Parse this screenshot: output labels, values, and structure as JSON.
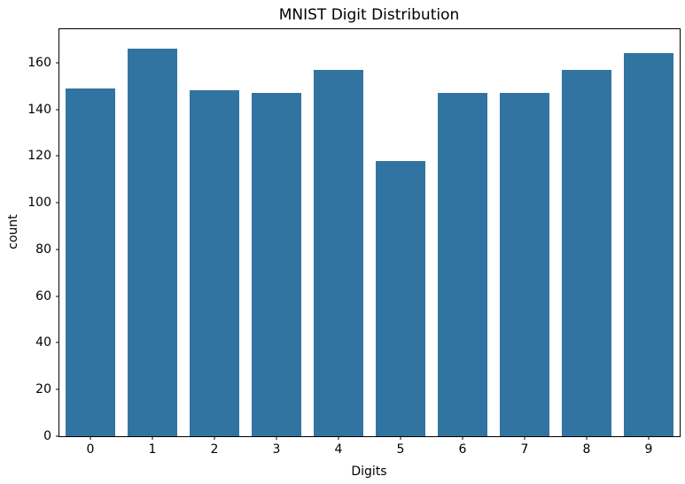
{
  "chart_data": {
    "type": "bar",
    "title": "MNIST Digit Distribution",
    "xlabel": "Digits",
    "ylabel": "count",
    "categories": [
      "0",
      "1",
      "2",
      "3",
      "4",
      "5",
      "6",
      "7",
      "8",
      "9"
    ],
    "values": [
      149,
      166,
      148,
      147,
      157,
      118,
      147,
      147,
      157,
      164
    ],
    "yticks": [
      0,
      20,
      40,
      60,
      80,
      100,
      120,
      140,
      160
    ],
    "ylim": [
      0,
      174.3
    ],
    "bar_color": "#3274a1",
    "axes_background": "#ffffff",
    "figure_background": "#ffffff",
    "spine_color": "#000000",
    "grid": false,
    "legend_position": "none",
    "bar_width_fraction": 0.8
  }
}
